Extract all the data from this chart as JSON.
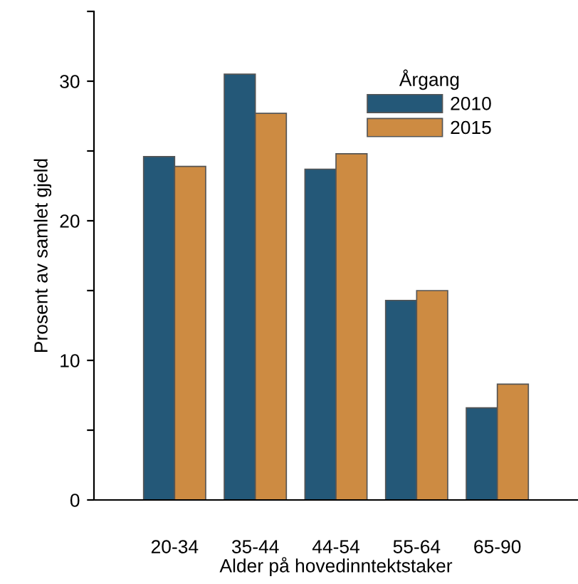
{
  "chart_data": {
    "type": "bar",
    "xlabel": "Alder på hovedinntektstaker",
    "ylabel": "Prosent av samlet gjeld",
    "legend_title": "Årgang",
    "categories": [
      "20-34",
      "35-44",
      "44-54",
      "55-64",
      "65-90"
    ],
    "series": [
      {
        "name": "2010",
        "color": "#245878",
        "values": [
          24.6,
          30.5,
          23.7,
          14.3,
          6.6
        ]
      },
      {
        "name": "2015",
        "color": "#cd8b42",
        "values": [
          23.9,
          27.7,
          24.8,
          15.0,
          8.3
        ]
      }
    ],
    "ylim": [
      0,
      35
    ],
    "yticks": [
      0,
      {
        "value": 5,
        "label": null
      },
      10,
      {
        "value": 15,
        "label": null
      },
      20,
      {
        "value": 25,
        "label": null
      },
      30,
      {
        "value": 35,
        "label": null
      }
    ],
    "grid": false,
    "legend": "top right"
  }
}
